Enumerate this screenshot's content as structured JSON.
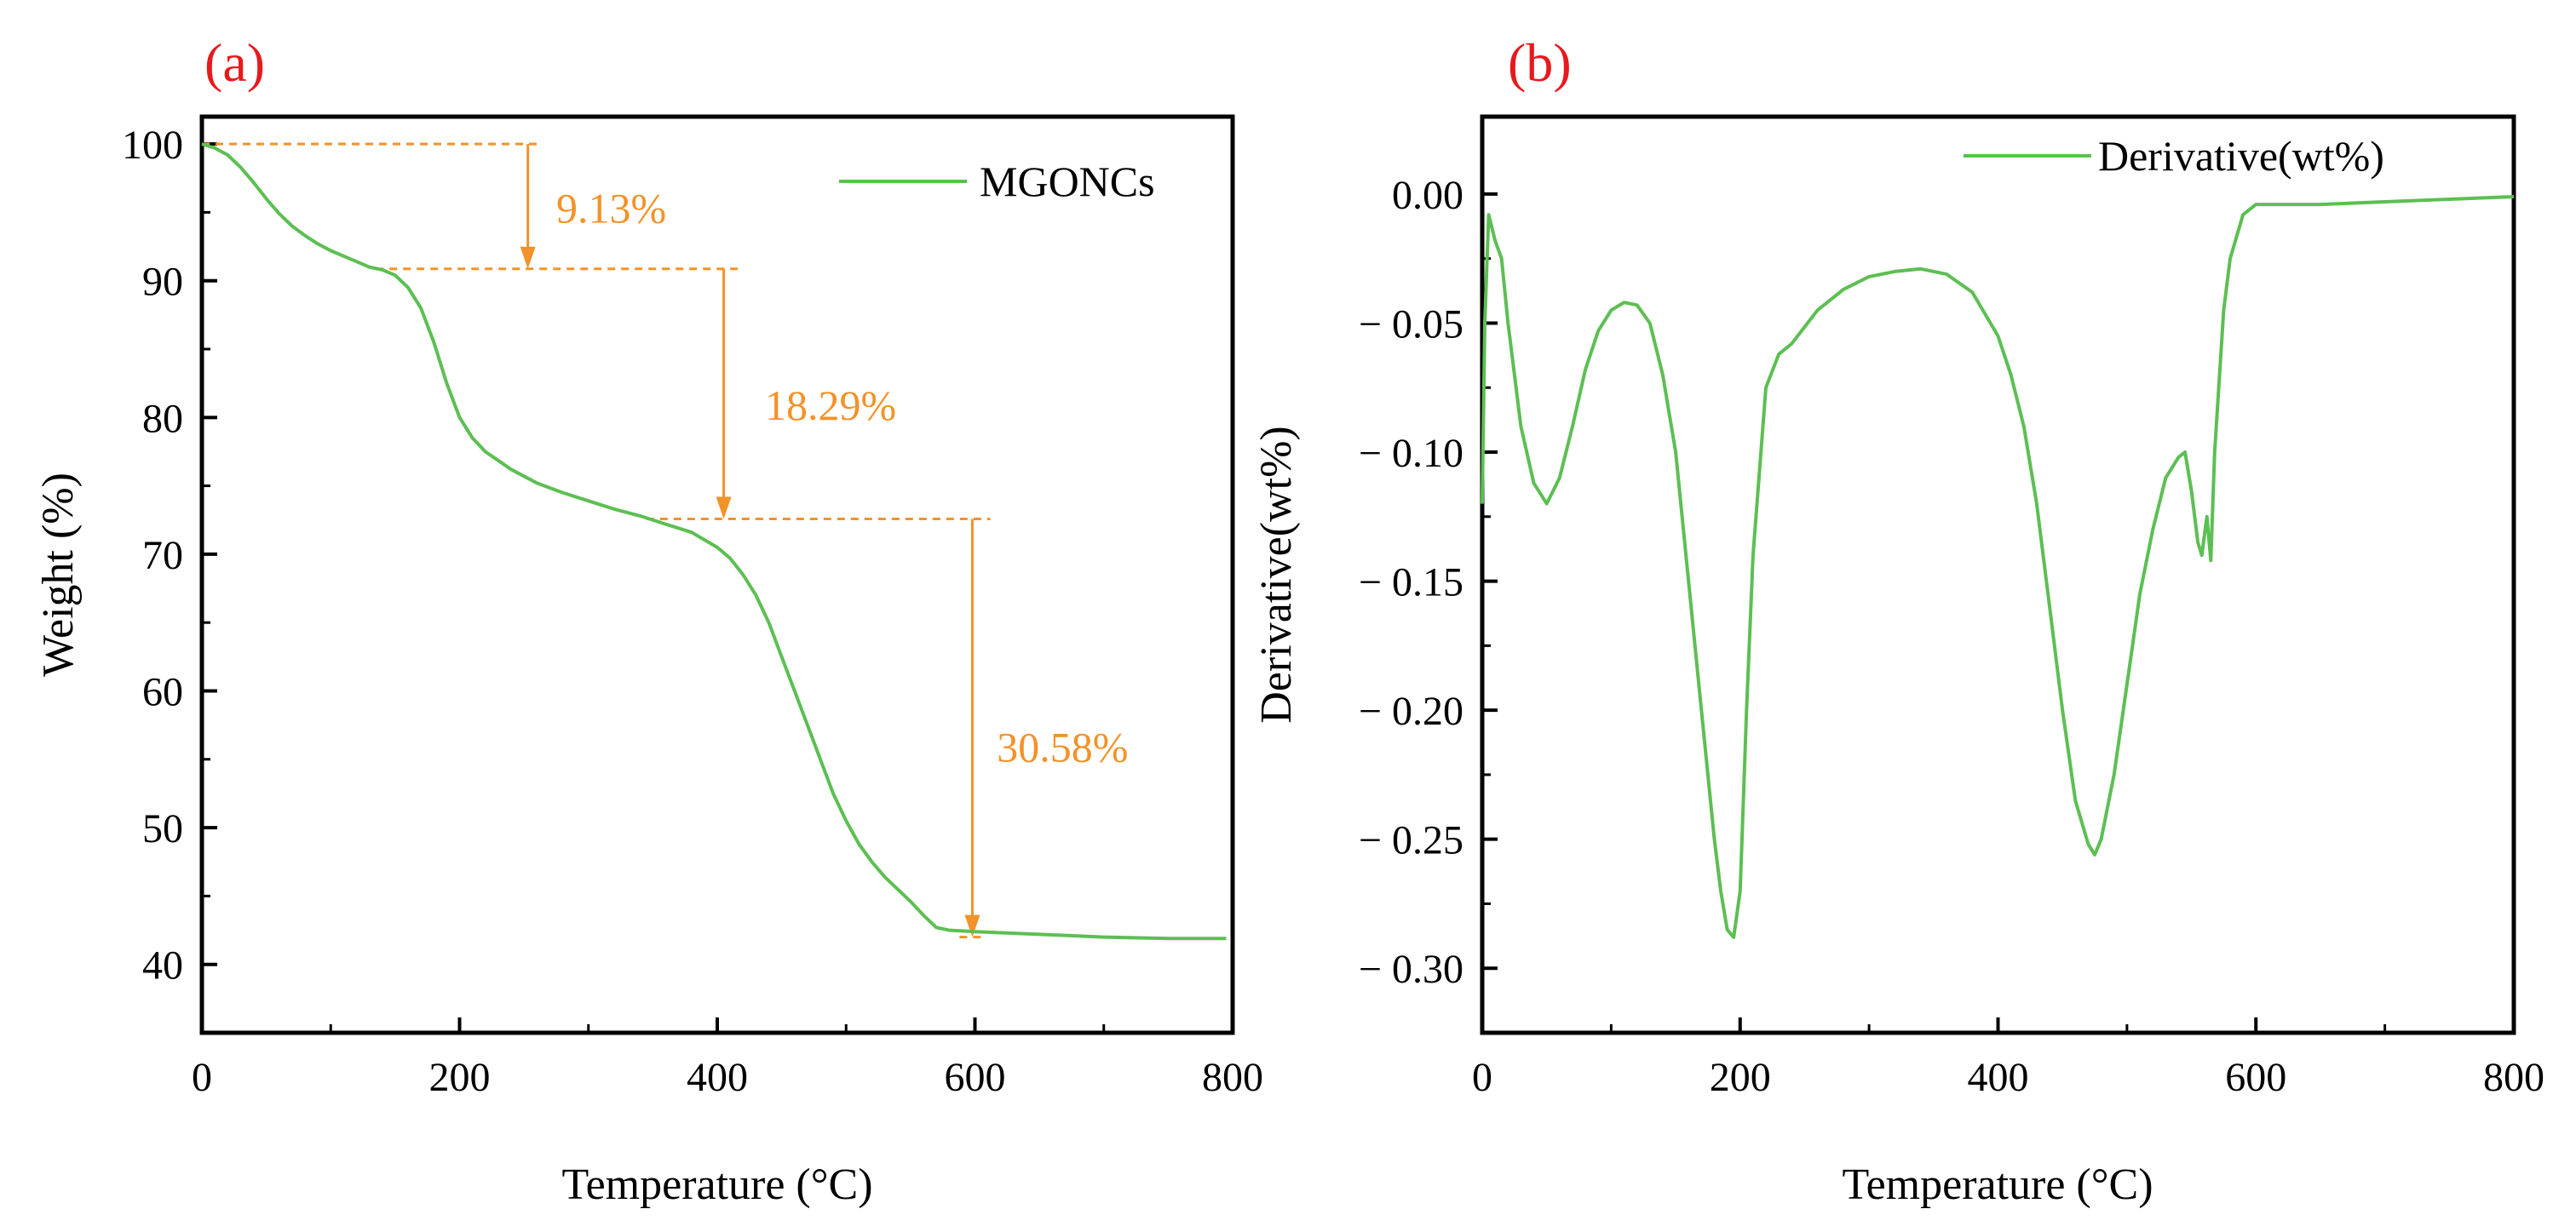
{
  "colors": {
    "curve": "#5cbf52",
    "annotation": "#f39229",
    "panel_label": "#e8191c",
    "axis": "#000000"
  },
  "chart_data": [
    {
      "panel": "(a)",
      "type": "line",
      "xlabel": "Temperature (°C)",
      "ylabel": "Weight (%)",
      "xlim": [
        0,
        800
      ],
      "ylim": [
        35,
        102
      ],
      "xticks": [
        0,
        200,
        400,
        600,
        800
      ],
      "yticks": [
        40,
        50,
        60,
        70,
        80,
        90,
        100
      ],
      "x_tick_labels": [
        "0",
        "200",
        "400",
        "600",
        "800"
      ],
      "y_tick_labels": [
        "40",
        "50",
        "60",
        "70",
        "80",
        "90",
        "100"
      ],
      "legend": "top-right",
      "grid": false,
      "series": [
        {
          "name": "MGONCs",
          "x": [
            0,
            10,
            20,
            30,
            40,
            50,
            60,
            70,
            80,
            90,
            100,
            110,
            120,
            130,
            140,
            150,
            160,
            170,
            180,
            190,
            200,
            210,
            220,
            240,
            260,
            280,
            300,
            320,
            340,
            360,
            380,
            400,
            410,
            420,
            430,
            440,
            450,
            460,
            470,
            480,
            490,
            500,
            510,
            520,
            530,
            540,
            550,
            560,
            570,
            580,
            600,
            650,
            700,
            750,
            795
          ],
          "y": [
            100,
            99.7,
            99.2,
            98.3,
            97.2,
            96.0,
            94.9,
            94.0,
            93.3,
            92.7,
            92.2,
            91.8,
            91.4,
            91.0,
            90.8,
            90.4,
            89.5,
            88.0,
            85.5,
            82.5,
            80.0,
            78.5,
            77.5,
            76.2,
            75.2,
            74.5,
            73.9,
            73.3,
            72.8,
            72.2,
            71.6,
            70.5,
            69.7,
            68.5,
            67.0,
            65.0,
            62.5,
            60.0,
            57.5,
            55.0,
            52.5,
            50.5,
            48.8,
            47.5,
            46.4,
            45.5,
            44.6,
            43.6,
            42.7,
            42.5,
            42.4,
            42.2,
            42.0,
            41.9,
            41.9
          ]
        }
      ],
      "annotations": [
        {
          "text": "9.13%",
          "from": 100.0,
          "to": 90.87,
          "arrow_x": 253,
          "line_x_range": [
            0,
            260
          ],
          "text_x": 275,
          "text_y": 95.3
        },
        {
          "text": "18.29%",
          "from": 90.87,
          "to": 72.58,
          "arrow_x": 405,
          "line_x_range": [
            135,
            420
          ],
          "text_x": 437,
          "text_y": 80.9
        },
        {
          "text": "30.58%",
          "from": 72.58,
          "to": 42.0,
          "arrow_x": 598,
          "line_x_range": [
            345,
            612
          ],
          "text_x": 617,
          "text_y": 55.9
        }
      ]
    },
    {
      "panel": "(b)",
      "type": "line",
      "xlabel": "Temperature (°C)",
      "ylabel": "Derivative(wt%)",
      "xlim": [
        0,
        800
      ],
      "ylim": [
        -0.325,
        0.03
      ],
      "xticks": [
        0,
        200,
        400,
        600,
        800
      ],
      "yticks": [
        0.0,
        -0.05,
        -0.1,
        -0.15,
        -0.2,
        -0.25,
        -0.3
      ],
      "x_tick_labels": [
        "0",
        "200",
        "400",
        "600",
        "800"
      ],
      "y_tick_labels": [
        "0.00",
        "− 0.05",
        "− 0.10",
        "− 0.15",
        "− 0.20",
        "− 0.25",
        "− 0.30"
      ],
      "legend": "top-right",
      "grid": false,
      "series": [
        {
          "name": "Derivative(wt%)",
          "x": [
            0,
            2,
            5,
            10,
            15,
            20,
            30,
            40,
            50,
            60,
            70,
            80,
            90,
            100,
            110,
            120,
            130,
            140,
            150,
            160,
            170,
            180,
            185,
            190,
            195,
            200,
            205,
            210,
            220,
            230,
            240,
            260,
            280,
            300,
            320,
            340,
            360,
            380,
            400,
            410,
            420,
            430,
            440,
            450,
            460,
            470,
            475,
            480,
            490,
            500,
            510,
            520,
            530,
            540,
            545,
            550,
            555,
            558,
            562,
            565,
            568,
            575,
            580,
            590,
            600,
            650,
            700,
            750,
            800
          ],
          "y": [
            -0.12,
            -0.05,
            -0.008,
            -0.018,
            -0.025,
            -0.05,
            -0.09,
            -0.112,
            -0.12,
            -0.11,
            -0.09,
            -0.068,
            -0.053,
            -0.045,
            -0.042,
            -0.043,
            -0.05,
            -0.07,
            -0.1,
            -0.15,
            -0.2,
            -0.25,
            -0.27,
            -0.285,
            -0.288,
            -0.27,
            -0.2,
            -0.14,
            -0.075,
            -0.062,
            -0.058,
            -0.045,
            -0.037,
            -0.032,
            -0.03,
            -0.029,
            -0.031,
            -0.038,
            -0.055,
            -0.07,
            -0.09,
            -0.12,
            -0.16,
            -0.2,
            -0.235,
            -0.252,
            -0.256,
            -0.25,
            -0.225,
            -0.19,
            -0.155,
            -0.13,
            -0.11,
            -0.102,
            -0.1,
            -0.115,
            -0.135,
            -0.14,
            -0.125,
            -0.142,
            -0.1,
            -0.045,
            -0.025,
            -0.008,
            -0.004,
            -0.004,
            -0.003,
            -0.002,
            -0.001
          ]
        }
      ]
    }
  ]
}
